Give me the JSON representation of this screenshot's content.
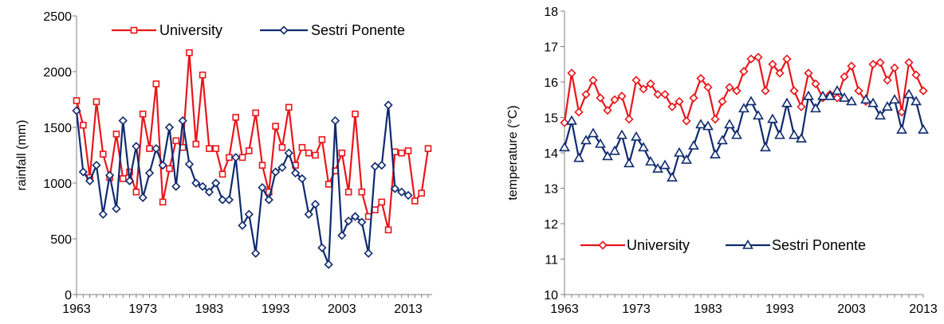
{
  "colors": {
    "university": "#e8161b",
    "sestri": "#0f2a6e",
    "axis": "#7f7f7f"
  },
  "chart_data": [
    {
      "type": "line",
      "title": "",
      "xlabel": "",
      "ylabel": "rainfall (mm)",
      "xlim": [
        1963,
        2016
      ],
      "ylim": [
        0,
        2500
      ],
      "xticks": [
        "1963",
        "1973",
        "1983",
        "1993",
        "2003",
        "2013"
      ],
      "yticks": [
        "0",
        "500",
        "1000",
        "1500",
        "2000",
        "2500"
      ],
      "legend": "top",
      "grid": false,
      "series": [
        {
          "name": "University",
          "marker": "square",
          "x_start": 1963,
          "values": [
            1740,
            1520,
            1050,
            1730,
            1260,
            1050,
            1440,
            1040,
            1100,
            920,
            1620,
            1310,
            1890,
            830,
            1130,
            1380,
            1320,
            2170,
            1350,
            1970,
            1310,
            1310,
            1080,
            1230,
            1590,
            1230,
            1290,
            1630,
            1160,
            920,
            1510,
            1320,
            1680,
            1160,
            1320,
            1270,
            1250,
            1390,
            990,
            1110,
            1270,
            920,
            1620,
            920,
            700,
            760,
            830,
            580,
            1280,
            1270,
            1290,
            840,
            910,
            1310
          ]
        },
        {
          "name": "Sestri Ponente",
          "marker": "diamond",
          "x_start": 1963,
          "values": [
            1650,
            1100,
            1020,
            1160,
            720,
            1070,
            770,
            1560,
            1020,
            1330,
            870,
            1090,
            1310,
            1160,
            1500,
            970,
            1560,
            1170,
            1000,
            970,
            920,
            1000,
            850,
            850,
            1230,
            620,
            720,
            370,
            960,
            850,
            1100,
            1140,
            1270,
            1090,
            1040,
            720,
            810,
            420,
            270,
            1560,
            530,
            660,
            700,
            650,
            370,
            1150,
            1160,
            1700,
            950,
            920,
            890
          ]
        }
      ]
    },
    {
      "type": "line",
      "title": "",
      "xlabel": "",
      "ylabel": "temperature (°C)",
      "xlim": [
        1963,
        2013
      ],
      "ylim": [
        10,
        18
      ],
      "xticks": [
        "1963",
        "1973",
        "1983",
        "1993",
        "2003",
        "2013"
      ],
      "yticks": [
        "10",
        "11",
        "12",
        "13",
        "14",
        "15",
        "16",
        "17",
        "18"
      ],
      "legend": "center",
      "grid": false,
      "series": [
        {
          "name": "University",
          "marker": "diamond",
          "x_start": 1963,
          "values": [
            14.85,
            16.25,
            15.15,
            15.65,
            16.05,
            15.55,
            15.2,
            15.5,
            15.6,
            14.95,
            16.05,
            15.8,
            15.95,
            15.65,
            15.65,
            15.3,
            15.45,
            14.9,
            15.55,
            16.1,
            15.85,
            14.95,
            15.45,
            15.85,
            15.75,
            16.3,
            16.65,
            16.7,
            15.75,
            16.5,
            16.25,
            16.65,
            15.75,
            15.3,
            16.25,
            15.95,
            15.55,
            15.65,
            15.55,
            16.15,
            16.45,
            15.75,
            15.45,
            16.5,
            16.55,
            16.05,
            16.4,
            15.15,
            16.55,
            16.2,
            15.75
          ]
        },
        {
          "name": "Sestri Ponente",
          "marker": "triangle",
          "x_start": 1963,
          "values": [
            14.15,
            14.9,
            13.85,
            14.35,
            14.55,
            14.25,
            13.9,
            14.05,
            14.5,
            13.7,
            14.45,
            14.15,
            13.75,
            13.55,
            13.65,
            13.3,
            14.0,
            13.8,
            14.2,
            14.8,
            14.75,
            13.95,
            14.35,
            14.8,
            14.5,
            15.25,
            15.45,
            15.05,
            14.15,
            14.95,
            14.5,
            15.4,
            14.5,
            14.4,
            15.6,
            15.25,
            15.6,
            15.6,
            15.75,
            15.55,
            15.45,
            null,
            15.5,
            15.4,
            15.05,
            15.3,
            15.5,
            14.65,
            15.65,
            15.45,
            14.65
          ]
        }
      ]
    }
  ]
}
